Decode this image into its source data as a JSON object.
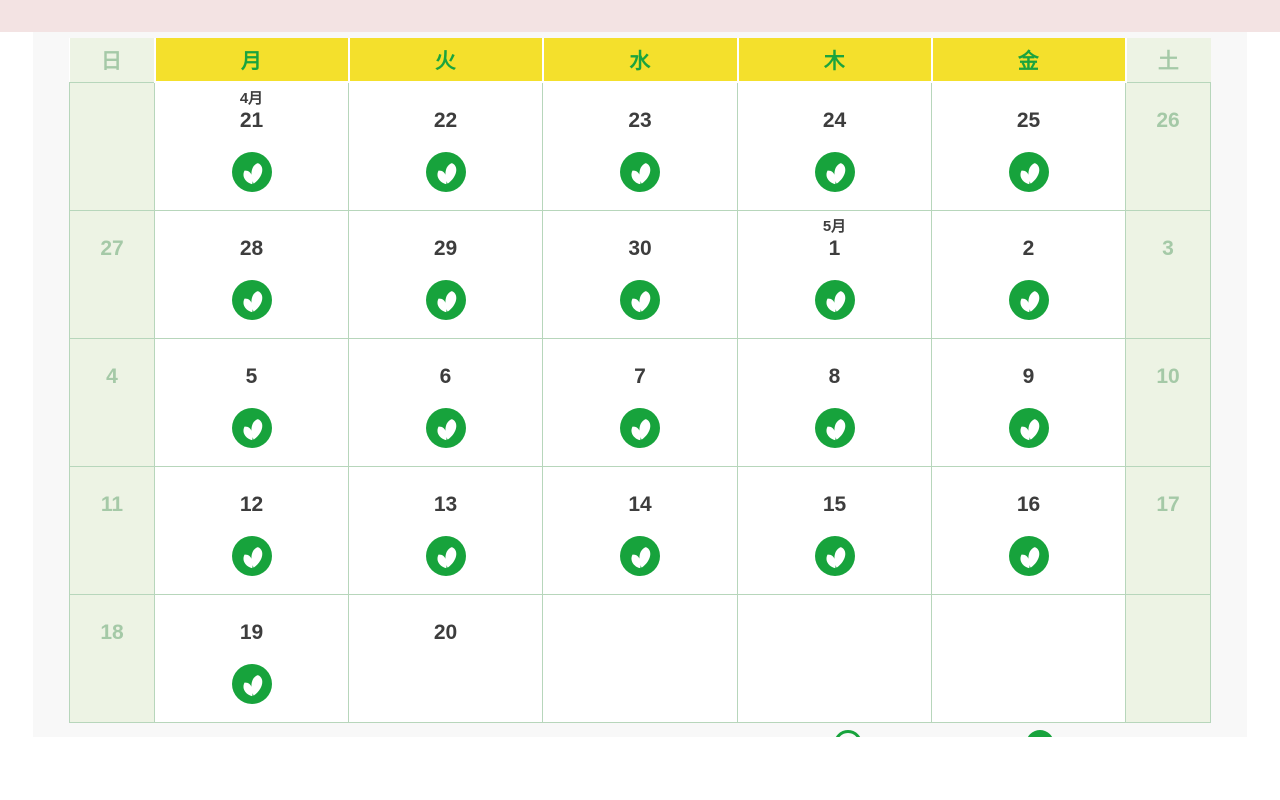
{
  "topbar": {
    "note": ""
  },
  "calendar": {
    "weekday_headers": [
      {
        "label": "日",
        "type": "weekend"
      },
      {
        "label": "月",
        "type": "weekday"
      },
      {
        "label": "火",
        "type": "weekday"
      },
      {
        "label": "水",
        "type": "weekday"
      },
      {
        "label": "木",
        "type": "weekday"
      },
      {
        "label": "金",
        "type": "weekday"
      },
      {
        "label": "土",
        "type": "weekend"
      }
    ],
    "weeks": [
      {
        "days": [
          {
            "date": "",
            "month_label": "",
            "weekend": true,
            "icon": false
          },
          {
            "date": "21",
            "month_label": "4月",
            "weekend": false,
            "icon": true
          },
          {
            "date": "22",
            "month_label": "",
            "weekend": false,
            "icon": true
          },
          {
            "date": "23",
            "month_label": "",
            "weekend": false,
            "icon": true
          },
          {
            "date": "24",
            "month_label": "",
            "weekend": false,
            "icon": true
          },
          {
            "date": "25",
            "month_label": "",
            "weekend": false,
            "icon": true
          },
          {
            "date": "26",
            "month_label": "",
            "weekend": true,
            "icon": false
          }
        ]
      },
      {
        "days": [
          {
            "date": "27",
            "month_label": "",
            "weekend": true,
            "icon": false
          },
          {
            "date": "28",
            "month_label": "",
            "weekend": false,
            "icon": true
          },
          {
            "date": "29",
            "month_label": "",
            "weekend": false,
            "icon": true
          },
          {
            "date": "30",
            "month_label": "",
            "weekend": false,
            "icon": true
          },
          {
            "date": "1",
            "month_label": "5月",
            "weekend": false,
            "icon": true
          },
          {
            "date": "2",
            "month_label": "",
            "weekend": false,
            "icon": true
          },
          {
            "date": "3",
            "month_label": "",
            "weekend": true,
            "icon": false
          }
        ]
      },
      {
        "days": [
          {
            "date": "4",
            "month_label": "",
            "weekend": true,
            "icon": false
          },
          {
            "date": "5",
            "month_label": "",
            "weekend": false,
            "icon": true
          },
          {
            "date": "6",
            "month_label": "",
            "weekend": false,
            "icon": true
          },
          {
            "date": "7",
            "month_label": "",
            "weekend": false,
            "icon": true
          },
          {
            "date": "8",
            "month_label": "",
            "weekend": false,
            "icon": true
          },
          {
            "date": "9",
            "month_label": "",
            "weekend": false,
            "icon": true
          },
          {
            "date": "10",
            "month_label": "",
            "weekend": true,
            "icon": false
          }
        ]
      },
      {
        "days": [
          {
            "date": "11",
            "month_label": "",
            "weekend": true,
            "icon": false
          },
          {
            "date": "12",
            "month_label": "",
            "weekend": false,
            "icon": true
          },
          {
            "date": "13",
            "month_label": "",
            "weekend": false,
            "icon": true
          },
          {
            "date": "14",
            "month_label": "",
            "weekend": false,
            "icon": true
          },
          {
            "date": "15",
            "month_label": "",
            "weekend": false,
            "icon": true
          },
          {
            "date": "16",
            "month_label": "",
            "weekend": false,
            "icon": true
          },
          {
            "date": "17",
            "month_label": "",
            "weekend": true,
            "icon": false
          }
        ]
      },
      {
        "days": [
          {
            "date": "18",
            "month_label": "",
            "weekend": true,
            "icon": false
          },
          {
            "date": "19",
            "month_label": "",
            "weekend": false,
            "icon": true
          },
          {
            "date": "20",
            "month_label": "",
            "weekend": false,
            "icon": false
          },
          {
            "date": "",
            "month_label": "",
            "weekend": false,
            "icon": false
          },
          {
            "date": "",
            "month_label": "",
            "weekend": false,
            "icon": false
          },
          {
            "date": "",
            "month_label": "",
            "weekend": false,
            "icon": false
          },
          {
            "date": "",
            "month_label": "",
            "weekend": true,
            "icon": false
          }
        ]
      }
    ]
  },
  "legend": {
    "items": [
      {
        "icon": "outlined-circle-icon"
      },
      {
        "icon": "filled-circle-icon"
      }
    ]
  },
  "icons": {
    "availability": "sprout-icon"
  },
  "colors": {
    "banner_pink": "#f3e3e3",
    "page_bg": "#ffffff",
    "panel_gray": "#f8f8f8",
    "header_yellow": "#f4e02c",
    "header_green_text": "#1ba43e",
    "weekend_bg": "#edf3e4",
    "weekend_text": "#a5c9a7",
    "cell_border": "#b7d6bb",
    "cell_bg": "#ffffff",
    "date_text": "#3d3d3d",
    "icon_green": "#17a33c"
  }
}
